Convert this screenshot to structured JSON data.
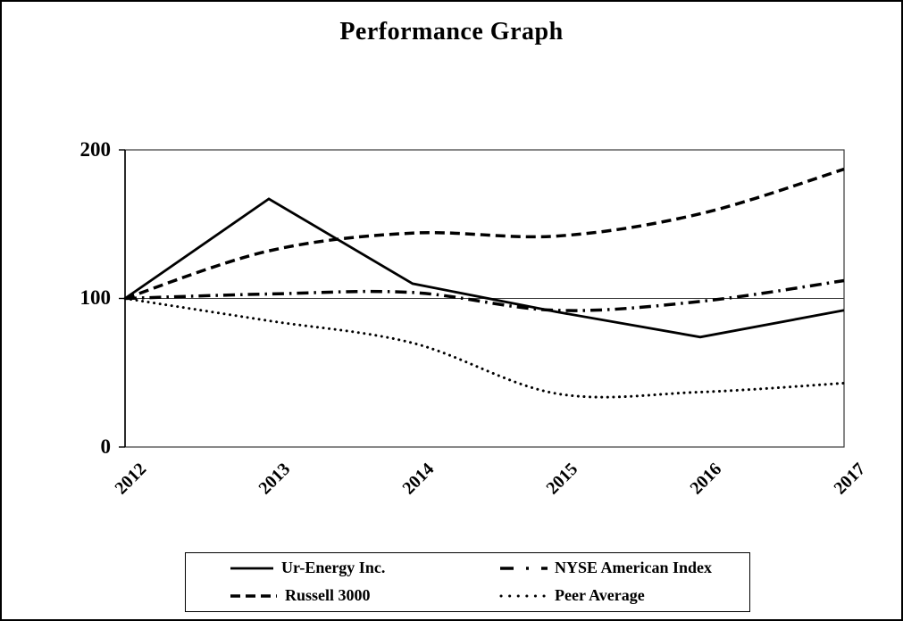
{
  "chart_data": {
    "type": "line",
    "title": "Performance Graph",
    "categories": [
      "2012",
      "2013",
      "2014",
      "2015",
      "2016",
      "2017"
    ],
    "y_ticks": [
      "200",
      "100",
      "0"
    ],
    "ylim": [
      0,
      200
    ],
    "gridline_at": 100,
    "xlabel": "",
    "ylabel": "",
    "legend_position": "bottom",
    "series": [
      {
        "name": "Ur-Energy Inc.",
        "style": "solid",
        "smooth": false,
        "values": [
          100,
          167,
          110,
          91,
          74,
          92
        ]
      },
      {
        "name": "NYSE American Index",
        "style": "dashdot",
        "smooth": true,
        "values": [
          100,
          103,
          104,
          92,
          98,
          112
        ]
      },
      {
        "name": "Russell 3000",
        "style": "dashed",
        "smooth": true,
        "values": [
          100,
          132,
          144,
          142,
          157,
          187
        ]
      },
      {
        "name": "Peer Average",
        "style": "dotted",
        "smooth": true,
        "values": [
          100,
          85,
          70,
          36,
          37,
          43
        ]
      }
    ],
    "colors": {
      "line": "#000000",
      "background": "#ffffff"
    }
  }
}
